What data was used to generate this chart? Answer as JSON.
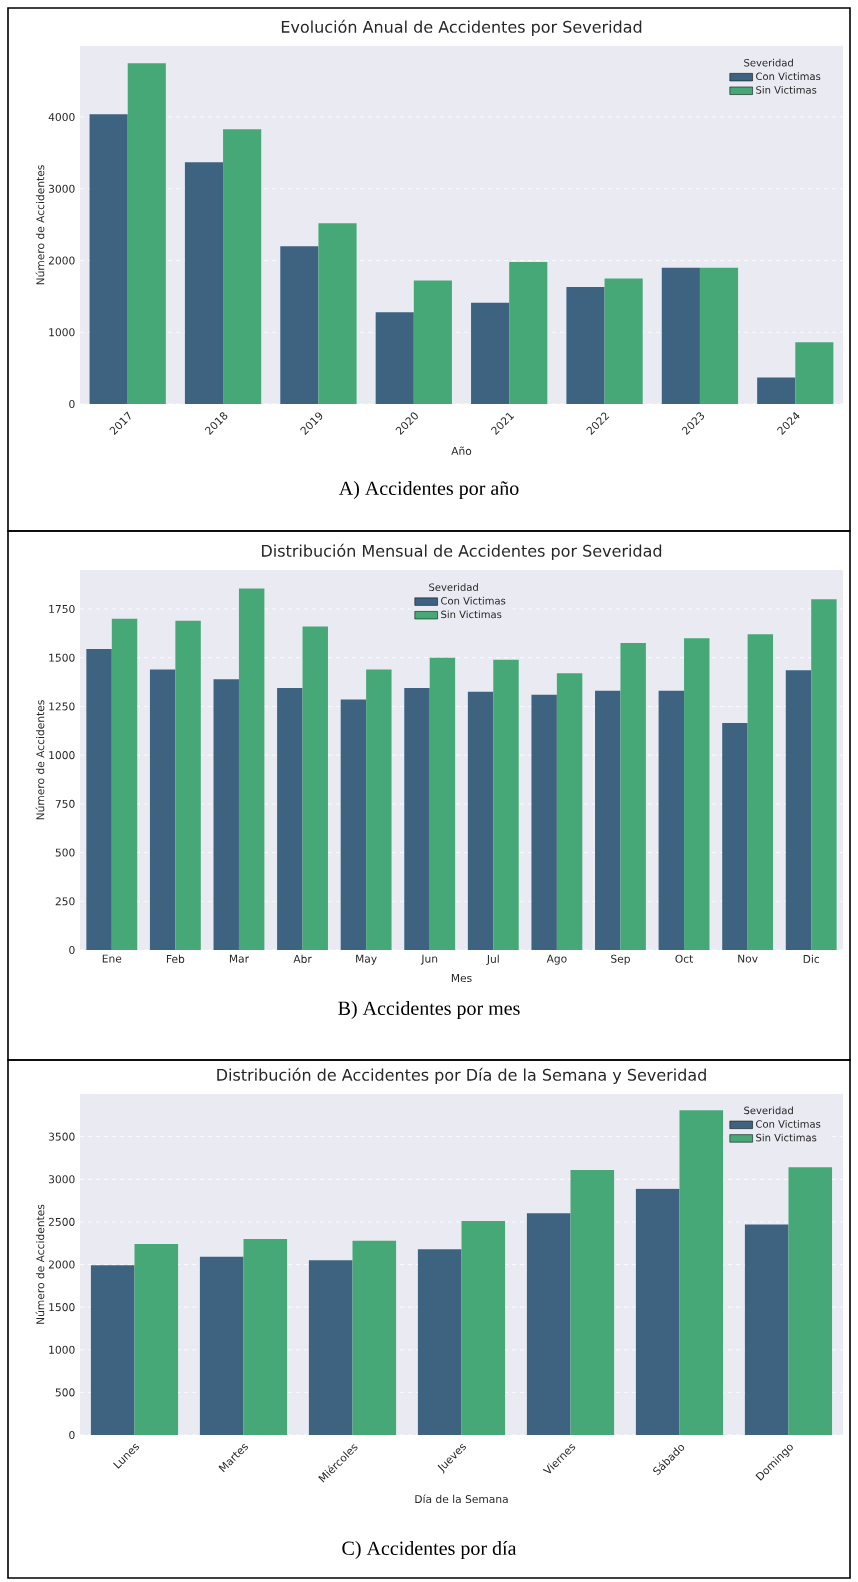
{
  "chart_data": [
    {
      "type": "bar",
      "title": "Evolución Anual de Accidentes por Severidad",
      "xlabel": "Año",
      "ylabel": "Número de Accidentes",
      "legend_title": "Severidad",
      "legend": "top right",
      "grid": "y",
      "categories": [
        "2017",
        "2018",
        "2019",
        "2020",
        "2021",
        "2022",
        "2023",
        "2024"
      ],
      "series": [
        {
          "name": "Con Victimas",
          "color": "#3e6380",
          "values": [
            4040,
            3370,
            2200,
            1280,
            1410,
            1630,
            1900,
            370
          ]
        },
        {
          "name": "Sin Victimas",
          "color": "#46a877",
          "values": [
            4750,
            3830,
            2520,
            1720,
            1980,
            1750,
            1900,
            860
          ]
        }
      ],
      "ylim": [
        0,
        4990
      ],
      "yticks": [
        0,
        1000,
        2000,
        3000,
        4000
      ],
      "annotations": [
        "A)   Accidentes por año"
      ]
    },
    {
      "type": "bar",
      "title": "Distribución Mensual de Accidentes por Severidad",
      "xlabel": "Mes",
      "ylabel": "Número de Accidentes",
      "legend_title": "Severidad",
      "legend": "top",
      "grid": "y",
      "categories": [
        "Ene",
        "Feb",
        "Mar",
        "Abr",
        "May",
        "Jun",
        "Jul",
        "Ago",
        "Sep",
        "Oct",
        "Nov",
        "Dic"
      ],
      "series": [
        {
          "name": "Con Victimas",
          "color": "#3e6380",
          "values": [
            1545,
            1440,
            1390,
            1345,
            1285,
            1345,
            1325,
            1310,
            1330,
            1330,
            1165,
            1435
          ]
        },
        {
          "name": "Sin Victimas",
          "color": "#46a877",
          "values": [
            1700,
            1690,
            1855,
            1660,
            1440,
            1500,
            1490,
            1420,
            1575,
            1600,
            1620,
            1800
          ]
        }
      ],
      "ylim": [
        0,
        1950
      ],
      "yticks": [
        0,
        250,
        500,
        750,
        1000,
        1250,
        1500,
        1750
      ],
      "annotations": [
        "B)   Accidentes por mes"
      ]
    },
    {
      "type": "bar",
      "title": "Distribución de Accidentes por Día de la Semana y Severidad",
      "xlabel": "Día de la Semana",
      "ylabel": "Número de Accidentes",
      "legend_title": "Severidad",
      "legend": "top right",
      "grid": "y",
      "categories": [
        "Lunes",
        "Martes",
        "Miércoles",
        "Jueves",
        "Viernes",
        "Sábado",
        "Domingo"
      ],
      "series": [
        {
          "name": "Con Victimas",
          "color": "#3e6380",
          "values": [
            1990,
            2090,
            2050,
            2180,
            2600,
            2890,
            2470
          ]
        },
        {
          "name": "Sin Victimas",
          "color": "#46a877",
          "values": [
            2240,
            2300,
            2280,
            2510,
            3110,
            3810,
            3140
          ]
        }
      ],
      "ylim": [
        0,
        4000
      ],
      "yticks": [
        0,
        500,
        1000,
        1500,
        2000,
        2500,
        3000,
        3500
      ],
      "annotations": [
        "C)   Accidentes por día"
      ]
    }
  ]
}
